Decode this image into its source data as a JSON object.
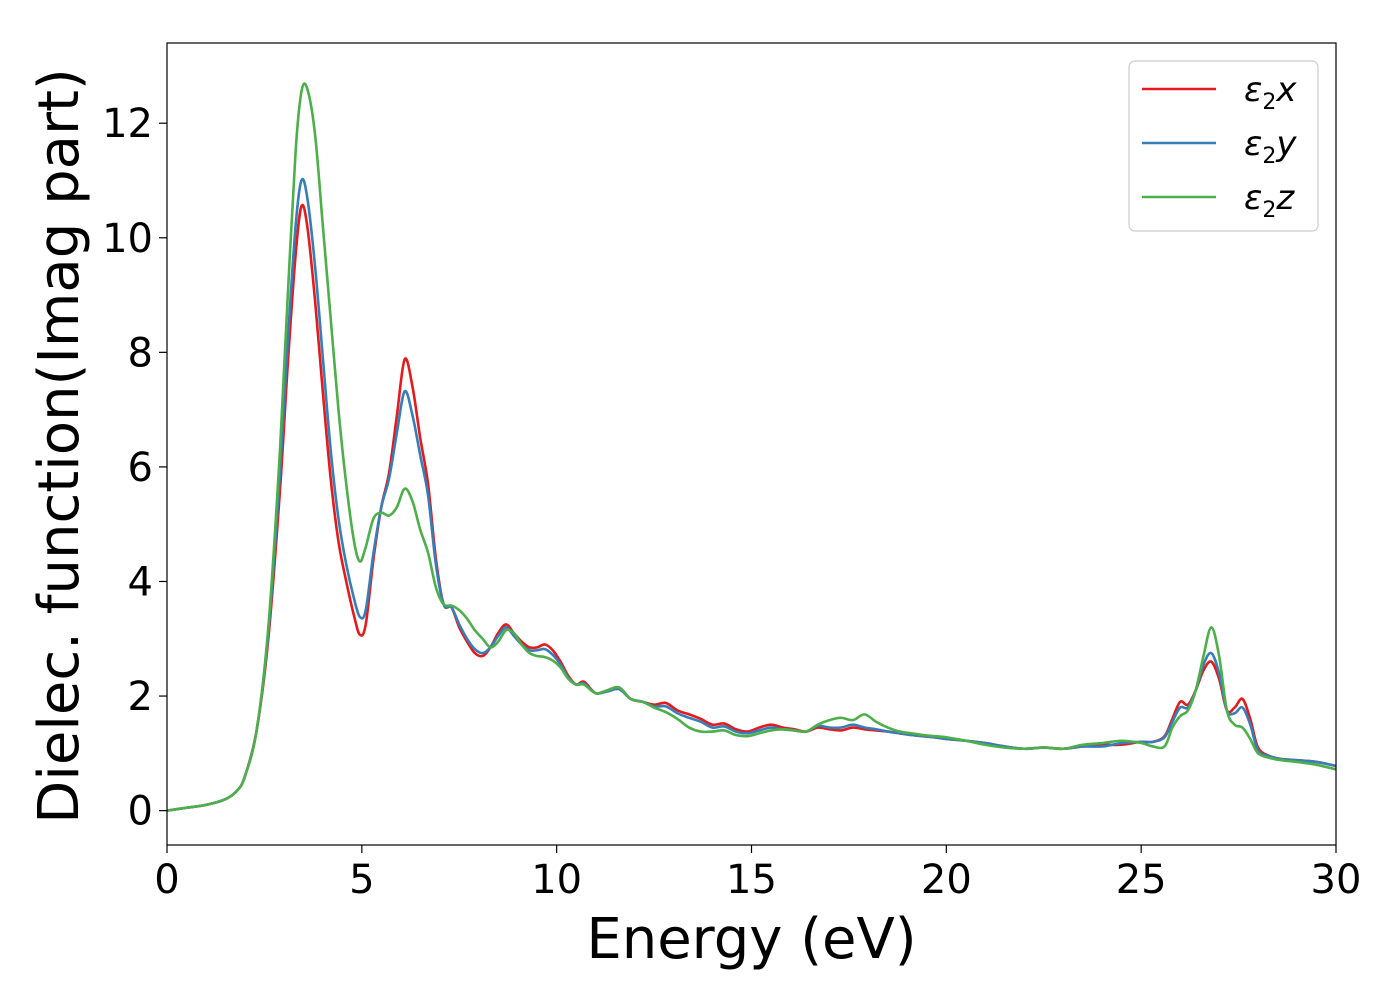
{
  "chart_data": {
    "type": "line",
    "title": "",
    "xlabel": "Energy (eV)",
    "ylabel": "Dielec. function(Imag part)",
    "xlim": [
      0,
      30
    ],
    "ylim": [
      -0.6,
      13.4
    ],
    "xticks": [
      0,
      5,
      10,
      15,
      20,
      25,
      30
    ],
    "yticks": [
      0,
      2,
      4,
      6,
      8,
      10,
      12
    ],
    "grid": false,
    "legend_position": "top-right",
    "series": [
      {
        "name": "ε2x",
        "legend": {
          "base": "ε",
          "sub": "2",
          "suffix": "x"
        },
        "color": "#e41a1c",
        "x": [
          0,
          0.5,
          1,
          1.5,
          1.8,
          2,
          2.3,
          2.6,
          2.9,
          3.1,
          3.3,
          3.45,
          3.6,
          3.8,
          4,
          4.2,
          4.4,
          4.6,
          4.8,
          4.95,
          5.1,
          5.3,
          5.5,
          5.7,
          5.9,
          6.1,
          6.3,
          6.5,
          6.7,
          6.9,
          7.1,
          7.3,
          7.5,
          7.7,
          7.9,
          8.1,
          8.3,
          8.5,
          8.7,
          8.9,
          9.1,
          9.3,
          9.5,
          9.7,
          9.9,
          10.1,
          10.3,
          10.5,
          10.7,
          11,
          11.3,
          11.6,
          11.9,
          12.2,
          12.5,
          12.8,
          13.1,
          13.4,
          13.7,
          14,
          14.3,
          14.6,
          14.9,
          15.2,
          15.5,
          15.8,
          16.1,
          16.4,
          16.7,
          17,
          17.3,
          17.6,
          17.9,
          18.2,
          18.5,
          18.8,
          19.1,
          19.4,
          19.7,
          20,
          20.5,
          21,
          21.5,
          22,
          22.5,
          23,
          23.5,
          24,
          24.5,
          25,
          25.3,
          25.6,
          25.8,
          26,
          26.2,
          26.4,
          26.6,
          26.8,
          27,
          27.2,
          27.4,
          27.6,
          27.8,
          28,
          28.3,
          28.6,
          29,
          29.5,
          30
        ],
        "y": [
          0,
          0.05,
          0.1,
          0.2,
          0.35,
          0.6,
          1.4,
          3.0,
          5.6,
          7.8,
          9.7,
          10.55,
          10.2,
          8.9,
          7.3,
          5.8,
          4.7,
          4.0,
          3.4,
          3.07,
          3.25,
          4.4,
          5.3,
          5.9,
          6.9,
          7.88,
          7.4,
          6.5,
          5.7,
          4.4,
          3.6,
          3.55,
          3.2,
          2.95,
          2.75,
          2.7,
          2.85,
          3.1,
          3.25,
          3.1,
          2.95,
          2.85,
          2.85,
          2.9,
          2.8,
          2.6,
          2.35,
          2.2,
          2.25,
          2.05,
          2.1,
          2.15,
          1.95,
          1.9,
          1.85,
          1.88,
          1.75,
          1.68,
          1.6,
          1.5,
          1.52,
          1.42,
          1.38,
          1.45,
          1.5,
          1.45,
          1.42,
          1.38,
          1.45,
          1.42,
          1.4,
          1.45,
          1.42,
          1.4,
          1.38,
          1.35,
          1.32,
          1.3,
          1.28,
          1.25,
          1.22,
          1.18,
          1.12,
          1.08,
          1.1,
          1.08,
          1.12,
          1.15,
          1.15,
          1.2,
          1.2,
          1.3,
          1.6,
          1.9,
          1.85,
          2.1,
          2.45,
          2.6,
          2.3,
          1.75,
          1.8,
          1.95,
          1.6,
          1.1,
          0.95,
          0.9,
          0.88,
          0.85,
          0.78
        ]
      },
      {
        "name": "ε2y",
        "legend": {
          "base": "ε",
          "sub": "2",
          "suffix": "y"
        },
        "color": "#377eb8",
        "x": [
          0,
          0.5,
          1,
          1.5,
          1.8,
          2,
          2.3,
          2.6,
          2.9,
          3.1,
          3.3,
          3.45,
          3.6,
          3.8,
          4,
          4.2,
          4.4,
          4.6,
          4.8,
          4.95,
          5.1,
          5.3,
          5.5,
          5.7,
          5.9,
          6.1,
          6.3,
          6.5,
          6.7,
          6.9,
          7.1,
          7.3,
          7.5,
          7.7,
          7.9,
          8.1,
          8.3,
          8.5,
          8.7,
          8.9,
          9.1,
          9.3,
          9.5,
          9.7,
          9.9,
          10.1,
          10.3,
          10.5,
          10.7,
          11,
          11.3,
          11.6,
          11.9,
          12.2,
          12.5,
          12.8,
          13.1,
          13.4,
          13.7,
          14,
          14.3,
          14.6,
          14.9,
          15.2,
          15.5,
          15.8,
          16.1,
          16.4,
          16.7,
          17,
          17.3,
          17.6,
          17.9,
          18.2,
          18.5,
          18.8,
          19.1,
          19.4,
          19.7,
          20,
          20.5,
          21,
          21.5,
          22,
          22.5,
          23,
          23.5,
          24,
          24.5,
          25,
          25.3,
          25.6,
          25.8,
          26,
          26.2,
          26.4,
          26.6,
          26.8,
          27,
          27.2,
          27.4,
          27.6,
          27.8,
          28,
          28.3,
          28.6,
          29,
          29.5,
          30
        ],
        "y": [
          0,
          0.05,
          0.1,
          0.2,
          0.35,
          0.6,
          1.4,
          3.1,
          5.9,
          8.2,
          10.2,
          11.0,
          10.7,
          9.5,
          7.9,
          6.3,
          5.1,
          4.3,
          3.7,
          3.38,
          3.5,
          4.5,
          5.3,
          5.8,
          6.6,
          7.32,
          6.9,
          6.2,
          5.5,
          4.3,
          3.6,
          3.55,
          3.25,
          3.0,
          2.82,
          2.75,
          2.85,
          3.05,
          3.2,
          3.05,
          2.9,
          2.8,
          2.8,
          2.82,
          2.72,
          2.55,
          2.32,
          2.2,
          2.22,
          2.05,
          2.08,
          2.12,
          1.95,
          1.9,
          1.82,
          1.82,
          1.7,
          1.62,
          1.55,
          1.45,
          1.47,
          1.38,
          1.35,
          1.4,
          1.45,
          1.42,
          1.4,
          1.38,
          1.48,
          1.45,
          1.45,
          1.5,
          1.45,
          1.42,
          1.38,
          1.35,
          1.32,
          1.3,
          1.28,
          1.25,
          1.22,
          1.18,
          1.12,
          1.08,
          1.1,
          1.08,
          1.12,
          1.12,
          1.18,
          1.2,
          1.2,
          1.28,
          1.55,
          1.8,
          1.8,
          2.1,
          2.55,
          2.75,
          2.4,
          1.75,
          1.7,
          1.8,
          1.5,
          1.05,
          0.95,
          0.9,
          0.88,
          0.85,
          0.78
        ]
      },
      {
        "name": "ε2z",
        "legend": {
          "base": "ε",
          "sub": "2",
          "suffix": "z"
        },
        "color": "#4daf4a",
        "x": [
          0,
          0.5,
          1,
          1.5,
          1.8,
          2,
          2.3,
          2.6,
          2.9,
          3.1,
          3.3,
          3.45,
          3.6,
          3.8,
          4,
          4.2,
          4.4,
          4.6,
          4.8,
          4.95,
          5.1,
          5.3,
          5.5,
          5.7,
          5.9,
          6.1,
          6.3,
          6.5,
          6.7,
          6.9,
          7.1,
          7.3,
          7.5,
          7.7,
          7.9,
          8.1,
          8.3,
          8.5,
          8.7,
          8.9,
          9.1,
          9.3,
          9.5,
          9.7,
          9.9,
          10.1,
          10.3,
          10.5,
          10.7,
          11,
          11.3,
          11.6,
          11.9,
          12.2,
          12.5,
          12.8,
          13.1,
          13.4,
          13.7,
          14,
          14.3,
          14.6,
          14.9,
          15.2,
          15.5,
          15.8,
          16.1,
          16.4,
          16.7,
          17,
          17.3,
          17.6,
          17.9,
          18.2,
          18.5,
          18.8,
          19.1,
          19.4,
          19.7,
          20,
          20.5,
          21,
          21.5,
          22,
          22.5,
          23,
          23.5,
          24,
          24.5,
          25,
          25.3,
          25.6,
          25.8,
          26,
          26.2,
          26.4,
          26.6,
          26.8,
          27,
          27.2,
          27.4,
          27.6,
          27.8,
          28,
          28.3,
          28.6,
          29,
          29.5,
          30
        ],
        "y": [
          0,
          0.05,
          0.1,
          0.2,
          0.35,
          0.6,
          1.4,
          3.2,
          6.3,
          9.0,
          11.5,
          12.55,
          12.6,
          11.8,
          10.2,
          8.6,
          7.0,
          5.7,
          4.7,
          4.35,
          4.6,
          5.1,
          5.2,
          5.15,
          5.3,
          5.62,
          5.4,
          4.9,
          4.5,
          3.9,
          3.6,
          3.58,
          3.5,
          3.35,
          3.15,
          3.0,
          2.85,
          2.95,
          3.15,
          3.1,
          2.9,
          2.75,
          2.7,
          2.68,
          2.62,
          2.5,
          2.3,
          2.2,
          2.2,
          2.05,
          2.1,
          2.15,
          1.95,
          1.9,
          1.8,
          1.72,
          1.6,
          1.45,
          1.38,
          1.38,
          1.4,
          1.32,
          1.3,
          1.35,
          1.4,
          1.42,
          1.4,
          1.38,
          1.5,
          1.58,
          1.62,
          1.58,
          1.68,
          1.55,
          1.45,
          1.38,
          1.35,
          1.32,
          1.3,
          1.28,
          1.22,
          1.15,
          1.1,
          1.08,
          1.1,
          1.08,
          1.15,
          1.18,
          1.22,
          1.18,
          1.12,
          1.12,
          1.45,
          1.65,
          1.75,
          2.1,
          2.7,
          3.2,
          2.7,
          1.75,
          1.5,
          1.45,
          1.25,
          1.0,
          0.92,
          0.88,
          0.85,
          0.8,
          0.72
        ]
      }
    ]
  }
}
